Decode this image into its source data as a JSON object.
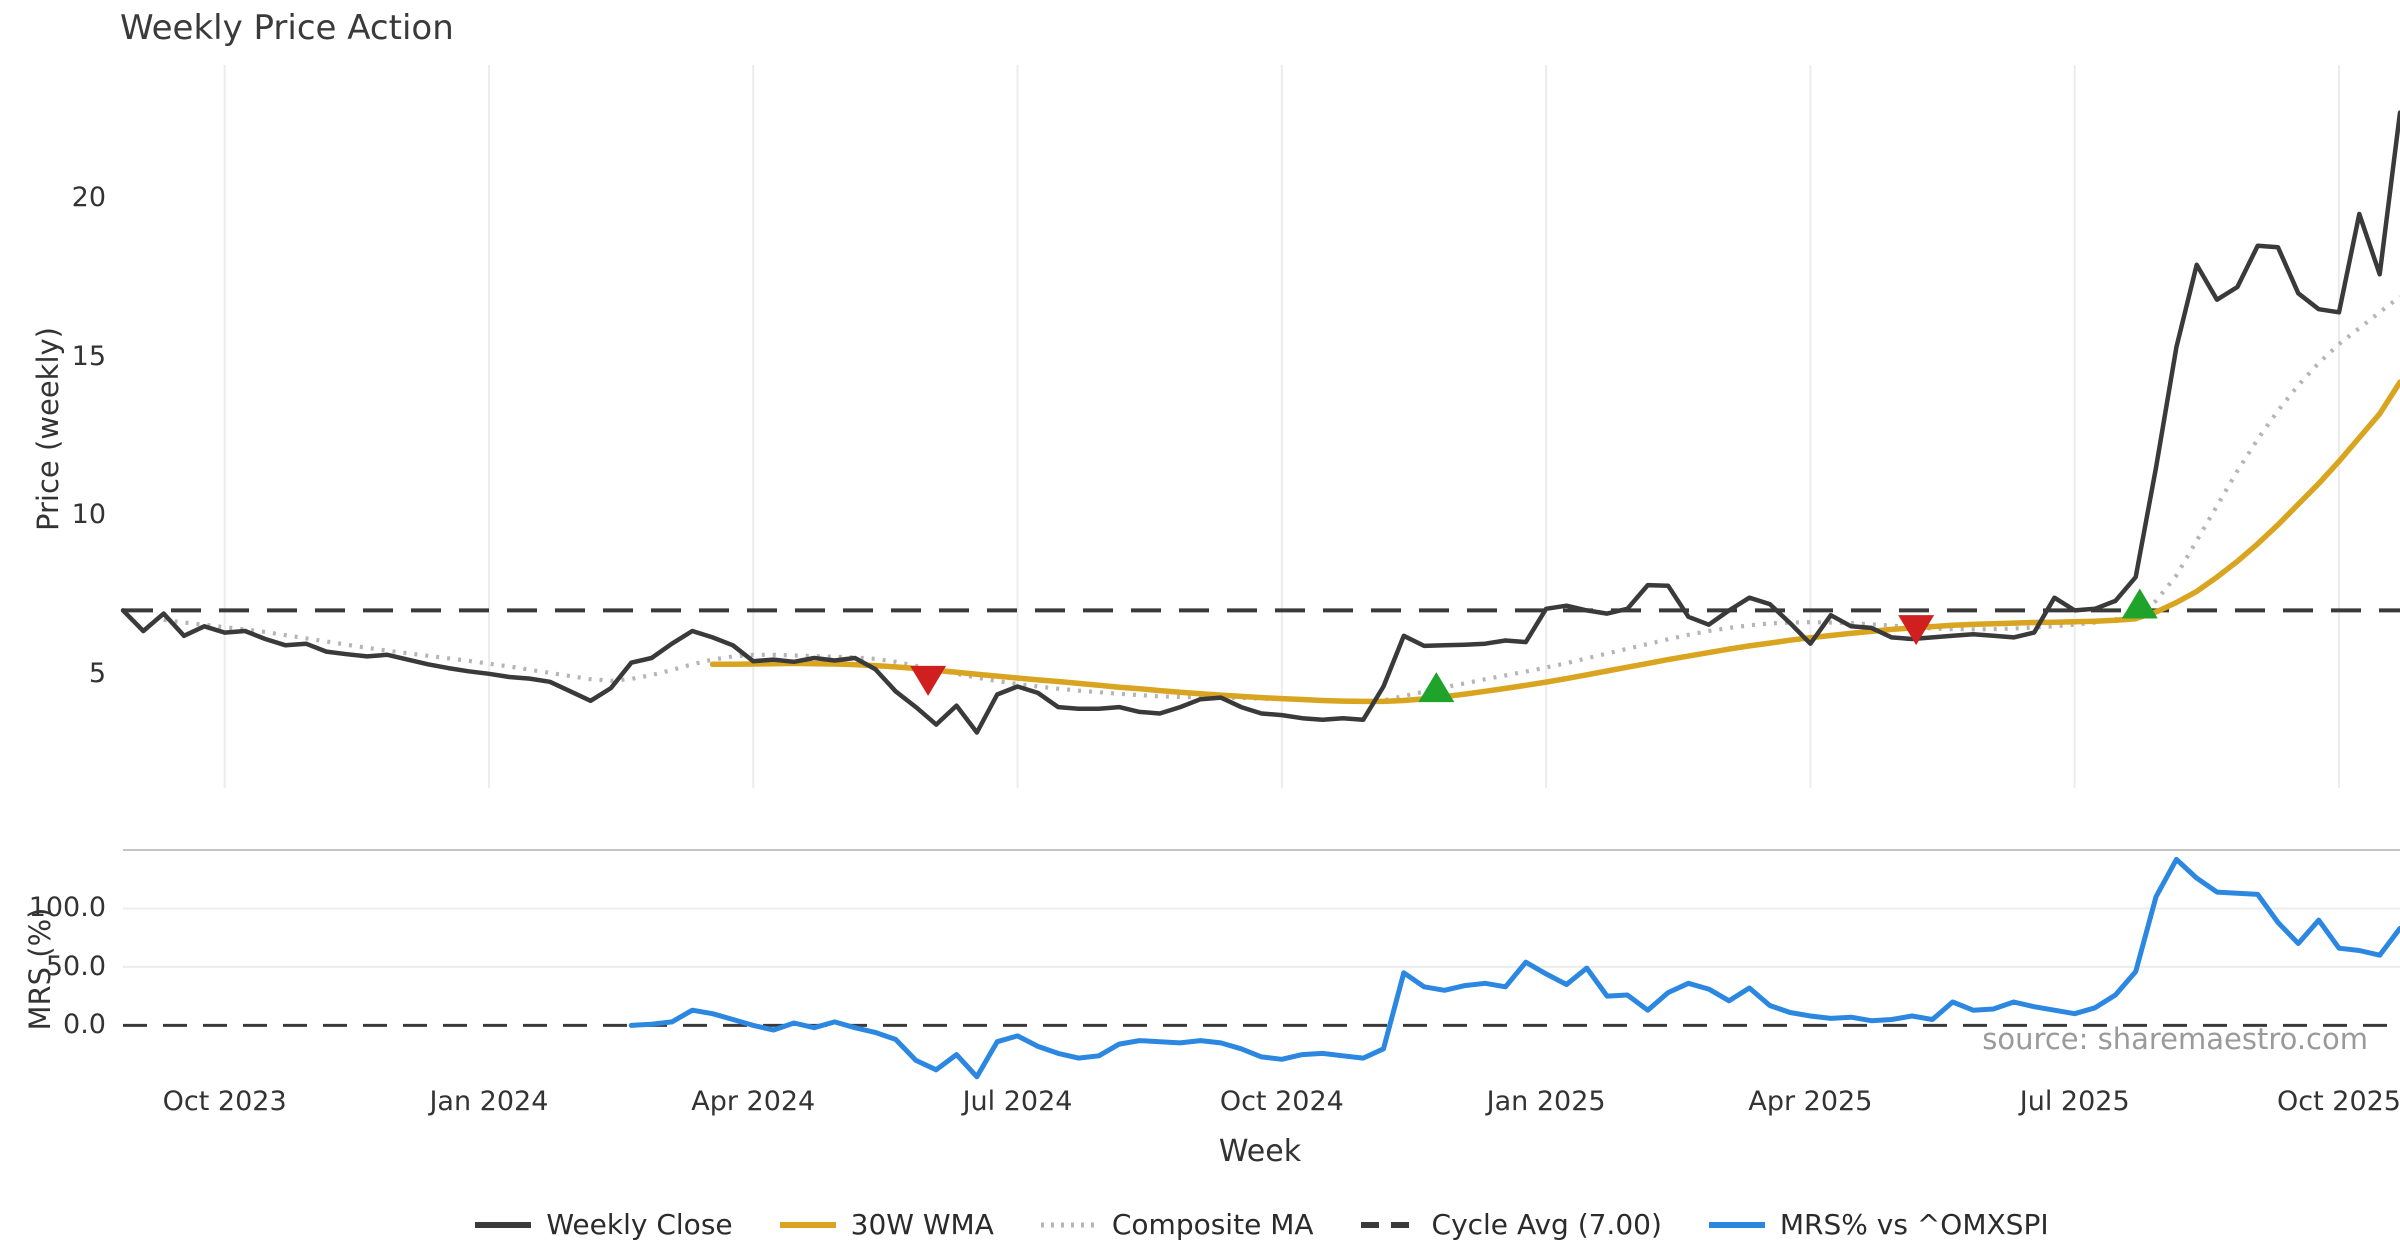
{
  "title": "Weekly Price Action",
  "watermark": "source: sharemaestro.com",
  "xlabel": "Week",
  "colors": {
    "close": "#3a3a3a",
    "wma": "#d9a521",
    "composite": "#b5b5b5",
    "cycle_avg": "#3a3a3a",
    "mrs": "#2b87e0",
    "buy_marker": "#1fa32b",
    "sell_marker": "#d01f1f",
    "grid": "#ececec",
    "panel_border": "#c4c4c4",
    "text": "#333333",
    "watermark_text": "#9a9a9a"
  },
  "legend": [
    {
      "label": "Weekly Close",
      "style": "solid",
      "color": "#3a3a3a"
    },
    {
      "label": "30W WMA",
      "style": "solid",
      "color": "#d9a521"
    },
    {
      "label": "Composite MA",
      "style": "dotted",
      "color": "#b5b5b5"
    },
    {
      "label": "Cycle Avg (7.00)",
      "style": "dashed",
      "color": "#3a3a3a"
    },
    {
      "label": "MRS% vs ^OMXSPI",
      "style": "solid",
      "color": "#2b87e0"
    }
  ],
  "chart_data": {
    "type": "line",
    "x_unit": "week-index",
    "weeks_total": 113,
    "xlabel": "Week",
    "x_ticks": {
      "weeks": [
        5,
        18,
        31,
        44,
        57,
        70,
        83,
        96,
        109
      ],
      "labels": [
        "Oct 2023",
        "Jan 2024",
        "Apr 2024",
        "Jul 2024",
        "Oct 2024",
        "Jan 2025",
        "Apr 2025",
        "Jul 2025",
        "Oct 2025"
      ]
    },
    "panels": [
      {
        "name": "price",
        "ylabel": "Price (weekly)",
        "ylim": [
          1.4,
          24.2
        ],
        "yticks": [
          {
            "v": 20,
            "label": "20"
          },
          {
            "v": 15,
            "label": "15"
          },
          {
            "v": 10,
            "label": "10"
          },
          {
            "v": 5,
            "label": "5"
          }
        ],
        "cycle_avg": 7.0,
        "grid": "vertical",
        "series": [
          {
            "name": "Composite MA",
            "style": "dotted",
            "color": "#b5b5b5",
            "width": 4.2,
            "values": [
              null,
              null,
              6.7,
              6.62,
              6.55,
              6.47,
              6.4,
              6.32,
              6.22,
              6.12,
              6.02,
              5.92,
              5.82,
              5.73,
              5.65,
              5.57,
              5.49,
              5.41,
              5.32,
              5.23,
              5.13,
              5.03,
              4.93,
              4.83,
              4.78,
              4.84,
              4.96,
              5.12,
              5.3,
              5.45,
              5.55,
              5.6,
              5.6,
              5.58,
              5.56,
              5.54,
              5.52,
              5.47,
              5.38,
              5.25,
              5.12,
              5.0,
              4.88,
              4.77,
              4.68,
              4.6,
              4.53,
              4.47,
              4.42,
              4.37,
              4.33,
              4.29,
              4.27,
              4.26,
              4.25,
              4.24,
              4.22,
              4.2,
              4.18,
              4.16,
              4.15,
              4.14,
              4.16,
              4.3,
              4.44,
              4.58,
              4.7,
              4.83,
              4.95,
              5.07,
              5.2,
              5.34,
              5.49,
              5.64,
              5.79,
              5.94,
              6.09,
              6.23,
              6.35,
              6.45,
              6.53,
              6.59,
              6.62,
              6.63,
              6.62,
              6.6,
              6.56,
              6.52,
              6.47,
              6.43,
              6.41,
              6.4,
              6.41,
              6.43,
              6.46,
              6.5,
              6.55,
              6.62,
              6.72,
              6.9,
              7.3,
              8.1,
              9.2,
              10.3,
              11.4,
              12.4,
              13.3,
              14.1,
              14.8,
              15.4,
              15.9,
              16.4,
              16.9
            ]
          },
          {
            "name": "30W WMA",
            "style": "solid",
            "color": "#d9a521",
            "width": 5.5,
            "values": [
              null,
              null,
              null,
              null,
              null,
              null,
              null,
              null,
              null,
              null,
              null,
              null,
              null,
              null,
              null,
              null,
              null,
              null,
              null,
              null,
              null,
              null,
              null,
              null,
              null,
              null,
              null,
              null,
              null,
              5.3,
              5.3,
              5.31,
              5.32,
              5.33,
              5.32,
              5.31,
              5.29,
              5.26,
              5.22,
              5.17,
              5.11,
              5.05,
              4.99,
              4.93,
              4.87,
              4.81,
              4.76,
              4.7,
              4.64,
              4.58,
              4.53,
              4.47,
              4.42,
              4.37,
              4.33,
              4.29,
              4.25,
              4.22,
              4.19,
              4.16,
              4.14,
              4.13,
              4.13,
              4.16,
              4.21,
              4.28,
              4.36,
              4.45,
              4.54,
              4.64,
              4.74,
              4.85,
              4.97,
              5.09,
              5.21,
              5.33,
              5.45,
              5.56,
              5.67,
              5.78,
              5.88,
              5.97,
              6.06,
              6.14,
              6.21,
              6.28,
              6.34,
              6.4,
              6.45,
              6.49,
              6.53,
              6.56,
              6.58,
              6.6,
              6.62,
              6.63,
              6.64,
              6.66,
              6.69,
              6.74,
              6.95,
              7.25,
              7.6,
              8.05,
              8.55,
              9.1,
              9.7,
              10.35,
              11.0,
              11.7,
              12.45,
              13.2,
              14.2
            ]
          },
          {
            "name": "Weekly Close",
            "style": "solid",
            "color": "#3a3a3a",
            "width": 4.5,
            "values": [
              7.0,
              6.35,
              6.9,
              6.2,
              6.5,
              6.3,
              6.35,
              6.1,
              5.9,
              5.95,
              5.7,
              5.62,
              5.55,
              5.6,
              5.45,
              5.3,
              5.18,
              5.08,
              5.0,
              4.9,
              4.85,
              4.75,
              4.45,
              4.15,
              4.55,
              5.35,
              5.5,
              5.95,
              6.35,
              6.15,
              5.9,
              5.4,
              5.45,
              5.38,
              5.5,
              5.42,
              5.5,
              5.15,
              4.45,
              3.95,
              3.4,
              4.0,
              3.15,
              4.35,
              4.6,
              4.4,
              3.95,
              3.9,
              3.9,
              3.95,
              3.8,
              3.75,
              3.95,
              4.2,
              4.25,
              3.95,
              3.75,
              3.7,
              3.6,
              3.55,
              3.6,
              3.55,
              4.6,
              6.2,
              5.88,
              5.9,
              5.92,
              5.95,
              6.05,
              6.0,
              7.05,
              7.15,
              7.0,
              6.9,
              7.05,
              7.8,
              7.78,
              6.8,
              6.55,
              7.0,
              7.4,
              7.2,
              6.6,
              5.95,
              6.85,
              6.5,
              6.45,
              6.15,
              6.1,
              6.15,
              6.2,
              6.25,
              6.2,
              6.15,
              6.3,
              7.4,
              7.0,
              7.05,
              7.3,
              8.05,
              11.5,
              15.3,
              17.9,
              16.8,
              17.2,
              18.5,
              18.45,
              17.0,
              16.5,
              16.4,
              19.5,
              17.6,
              22.7
            ]
          }
        ],
        "markers": [
          {
            "type": "sell",
            "week": 39.6,
            "price": 4.78
          },
          {
            "type": "buy",
            "week": 64.6,
            "price": 4.58
          },
          {
            "type": "sell",
            "week": 88.2,
            "price": 6.38
          },
          {
            "type": "buy",
            "week": 99.2,
            "price": 7.22
          }
        ]
      },
      {
        "name": "mrs",
        "ylabel": "MRS (%)",
        "ylim": [
          -51,
          150
        ],
        "yticks": [
          {
            "v": 100,
            "label": "100.0"
          },
          {
            "v": 50,
            "label": "50.0"
          },
          {
            "v": 0,
            "label": "0.0"
          }
        ],
        "zero_line": 0,
        "hgridlines": [
          100,
          50
        ],
        "series": [
          {
            "name": "MRS% vs ^OMXSPI",
            "style": "solid",
            "color": "#2b87e0",
            "width": 5,
            "values": [
              null,
              null,
              null,
              null,
              null,
              null,
              null,
              null,
              null,
              null,
              null,
              null,
              null,
              null,
              null,
              null,
              null,
              null,
              null,
              null,
              null,
              null,
              null,
              null,
              null,
              0,
              1,
              3,
              13,
              10,
              5,
              0,
              -4,
              2,
              -2,
              3,
              -2,
              -6,
              -12,
              -30,
              -38,
              -25,
              -44,
              -14,
              -9,
              -18,
              -24,
              -28,
              -26,
              -16,
              -13,
              -14,
              -15,
              -13,
              -15,
              -20,
              -27,
              -29,
              -25,
              -24,
              -26,
              -28,
              -20,
              45,
              33,
              30,
              34,
              36,
              33,
              54,
              44,
              35,
              49,
              25,
              26,
              13,
              28,
              36,
              31,
              21,
              32,
              17,
              11,
              8,
              6,
              7,
              4,
              5,
              8,
              5,
              20,
              13,
              14,
              20,
              16,
              13,
              10,
              15,
              26,
              46,
              110,
              142,
              126,
              114,
              113,
              112,
              88,
              70,
              90,
              66,
              64,
              60,
              83
            ]
          }
        ]
      }
    ]
  }
}
